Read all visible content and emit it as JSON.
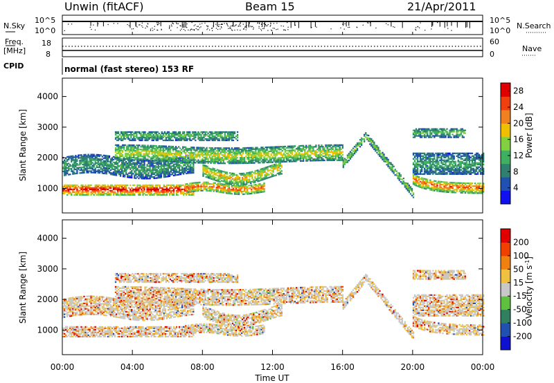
{
  "header": {
    "station": "Unwin (fitACF)",
    "beam": "Beam 15",
    "date": "21/Apr/2011"
  },
  "top_panels": {
    "nsky_label": "N.Sky",
    "nsky_ticks": [
      "10^5",
      "10^0"
    ],
    "nsearch_label": "N.Search",
    "nsearch_ticks": [
      "10^5",
      "10^0"
    ],
    "freq_label_1": "Freq.",
    "freq_label_2": "[MHz]",
    "freq_ticks": [
      "18",
      "8"
    ],
    "nave_label": "Nave",
    "nave_ticks": [
      "60",
      "0"
    ],
    "cpid_label": "CPID",
    "cpid_text": "normal (fast stereo) 153 RF"
  },
  "chart_data": [
    {
      "type": "heatmap",
      "name": "power",
      "ylabel": "Slant Range [km]",
      "yticks": [
        "1000",
        "2000",
        "3000",
        "4000"
      ],
      "ylim": [
        200,
        4600
      ],
      "xlim": [
        0,
        24
      ],
      "colorbar": {
        "label": "Power [dB]",
        "ticks": [
          "4",
          "8",
          "12",
          "16",
          "20",
          "24",
          "28"
        ],
        "range": [
          0,
          30
        ],
        "colors": [
          "#1010f0",
          "#2050b0",
          "#308070",
          "#40b060",
          "#80d040",
          "#f0c000",
          "#f08020",
          "#f04010",
          "#e00000"
        ]
      }
    },
    {
      "type": "heatmap",
      "name": "velocity",
      "ylabel": "Slant Range [km]",
      "yticks": [
        "1000",
        "2000",
        "3000",
        "4000"
      ],
      "ylim": [
        200,
        4600
      ],
      "xlim": [
        0,
        24
      ],
      "xlabel": "Time UT",
      "xticks": [
        "00:00",
        "04:00",
        "08:00",
        "12:00",
        "16:00",
        "20:00",
        "00:00"
      ],
      "colorbar": {
        "label": "Velocity [m s",
        "label_sup": "-1",
        "label_end": "]",
        "ticks": [
          "200",
          "100",
          "50",
          "15",
          "-15",
          "-50",
          "-100",
          "-200"
        ],
        "colors": [
          "#1010d0",
          "#2050b0",
          "#308060",
          "#60c040",
          "#c8c8c8",
          "#f0c040",
          "#f08010",
          "#f04000",
          "#e00000"
        ]
      }
    }
  ]
}
